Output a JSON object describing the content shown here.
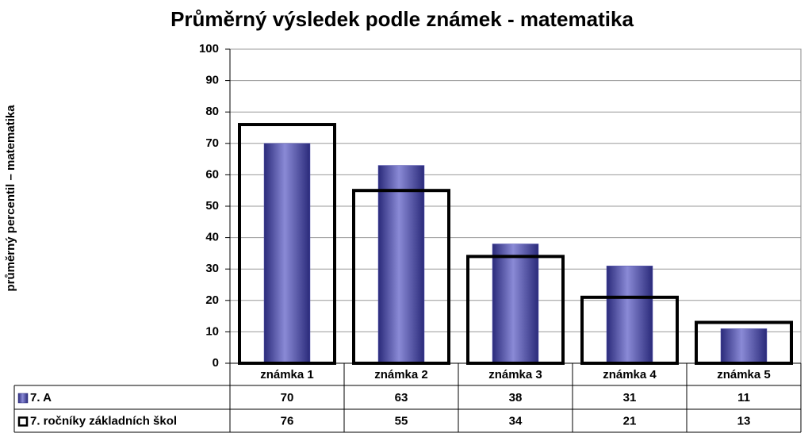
{
  "chart_data": {
    "type": "bar",
    "title": "Průměrný výsledek podle známek - matematika",
    "y_label": "průměrný percentil – matematika",
    "categories": [
      "známka 1",
      "známka 2",
      "známka 3",
      "známka 4",
      "známka 5"
    ],
    "series": [
      {
        "name": "7. A",
        "color": "#5b5bb5",
        "values": [
          70,
          63,
          38,
          31,
          11
        ]
      },
      {
        "name": "7. ročníky základních škol",
        "color": "#000000",
        "outline": true,
        "values": [
          76,
          55,
          34,
          21,
          13
        ]
      }
    ],
    "ylim": [
      0,
      100
    ],
    "yticks": [
      0,
      10,
      20,
      30,
      40,
      50,
      60,
      70,
      80,
      90,
      100
    ],
    "grid": true
  }
}
